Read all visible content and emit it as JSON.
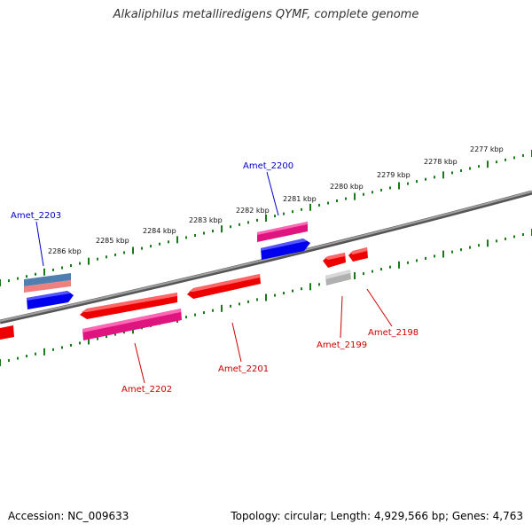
{
  "title": "Alkaliphilus metalliredigens QYMF, complete genome",
  "footer": {
    "accession": "Accession: NC_009633",
    "summary": "Topology: circular; Length: 4,929,566 bp; Genes: 4,763"
  },
  "colors": {
    "backbone": "#7a7a7a",
    "tick": "#1a7a1a",
    "forward_label": "#0000cc",
    "reverse_label": "#cc0000",
    "cds_forward": "#0000ee",
    "cds_reverse": "#ee0000",
    "gene_pink": "#e0147f",
    "gene_blue_steel": "#4f7fb0",
    "gene_salmon": "#f08080",
    "gene_grey": "#b0b0b0"
  },
  "scale_labels": [
    "2277 kbp",
    "2278 kbp",
    "2279 kbp",
    "2280 kbp",
    "2281 kbp",
    "2282 kbp",
    "2283 kbp",
    "2284 kbp",
    "2285 kbp",
    "2286 kbp"
  ],
  "genes": {
    "forward": [
      "Amet_2200",
      "Amet_2203"
    ],
    "reverse": [
      "Amet_2202",
      "Amet_2201",
      "Amet_2199",
      "Amet_2198"
    ]
  }
}
